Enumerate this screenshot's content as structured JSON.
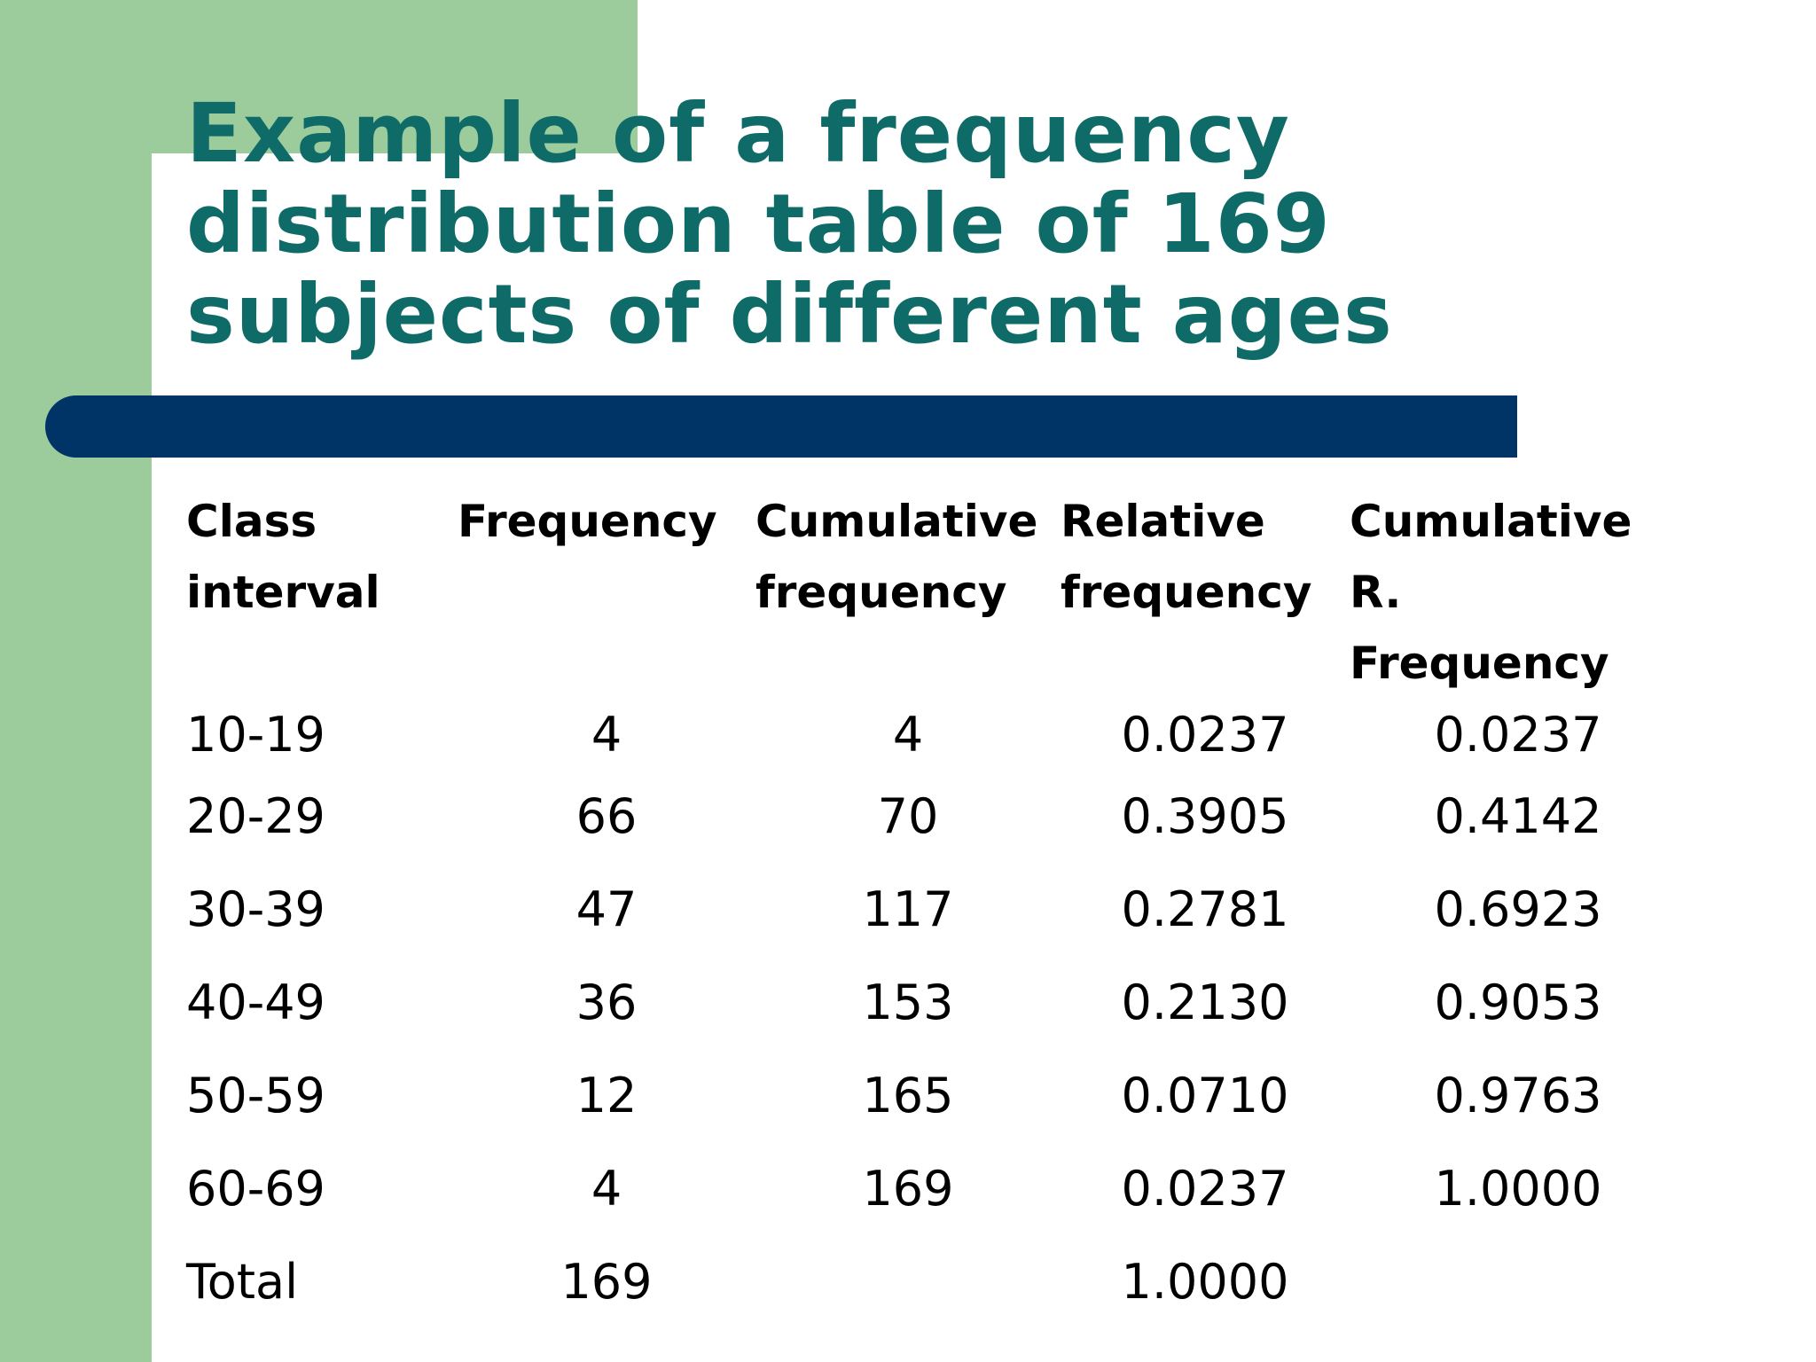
{
  "slide": {
    "title": "Example of a frequency distribution table of 169 subjects of different ages"
  },
  "table": {
    "headers": [
      [
        "Class",
        "interval"
      ],
      [
        "Frequency",
        ""
      ],
      [
        "Cumulative",
        "frequency"
      ],
      [
        "Relative",
        "frequency"
      ],
      [
        "Cumulative R.",
        "Frequency"
      ]
    ],
    "rows": [
      [
        "10-19",
        "4",
        "4",
        "0.0237",
        "0.0237"
      ],
      [
        "20-29",
        "66",
        "70",
        "0.3905",
        "0.4142"
      ],
      [
        "30-39",
        "47",
        "117",
        "0.2781",
        "0.6923"
      ],
      [
        "40-49",
        "36",
        "153",
        "0.2130",
        "0.9053"
      ],
      [
        "50-59",
        "12",
        "165",
        "0.0710",
        "0.9763"
      ],
      [
        "60-69",
        "4",
        "169",
        "0.0237",
        "1.0000"
      ],
      [
        "Total",
        "169",
        "",
        "1.0000",
        ""
      ]
    ]
  },
  "colors": {
    "green": "#9ccc9c",
    "title": "#0e6b68",
    "bar": "#003366"
  }
}
